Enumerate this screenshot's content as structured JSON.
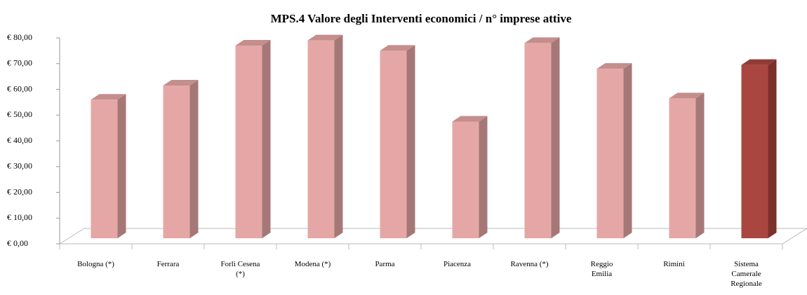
{
  "chart_data": {
    "type": "bar3d",
    "title": "MPS.4 Valore degli Interventi economici / n° imprese attive",
    "categories": [
      "Bologna (*)",
      "Ferrara",
      "Forlì Cesena\n(*)",
      "Modena (*)",
      "Parma",
      "Piacenza",
      "Ravenna  (*)",
      "Reggio\nEmilia",
      "Rimini",
      "Sistema\nCamerale\nRegionale"
    ],
    "values": [
      56,
      61.5,
      77,
      79,
      75,
      47.5,
      78,
      68,
      56.5,
      69.5
    ],
    "colors": [
      "#e5a7a5",
      "#e5a7a5",
      "#e5a7a5",
      "#e5a7a5",
      "#e5a7a5",
      "#e5a7a5",
      "#e5a7a5",
      "#e5a7a5",
      "#e5a7a5",
      "#a9463f"
    ],
    "ylim": [
      0,
      80
    ],
    "yticks": [
      {
        "value": 0,
        "label": "€ 0,00"
      },
      {
        "value": 10,
        "label": "€ 10,00"
      },
      {
        "value": 20,
        "label": "€ 20,00"
      },
      {
        "value": 30,
        "label": "€ 30,00"
      },
      {
        "value": 40,
        "label": "€ 40,00"
      },
      {
        "value": 50,
        "label": "€ 50,00"
      },
      {
        "value": 60,
        "label": "€ 60,00"
      },
      {
        "value": 70,
        "label": "€ 70,00"
      },
      {
        "value": 80,
        "label": "€ 80,00"
      }
    ]
  }
}
